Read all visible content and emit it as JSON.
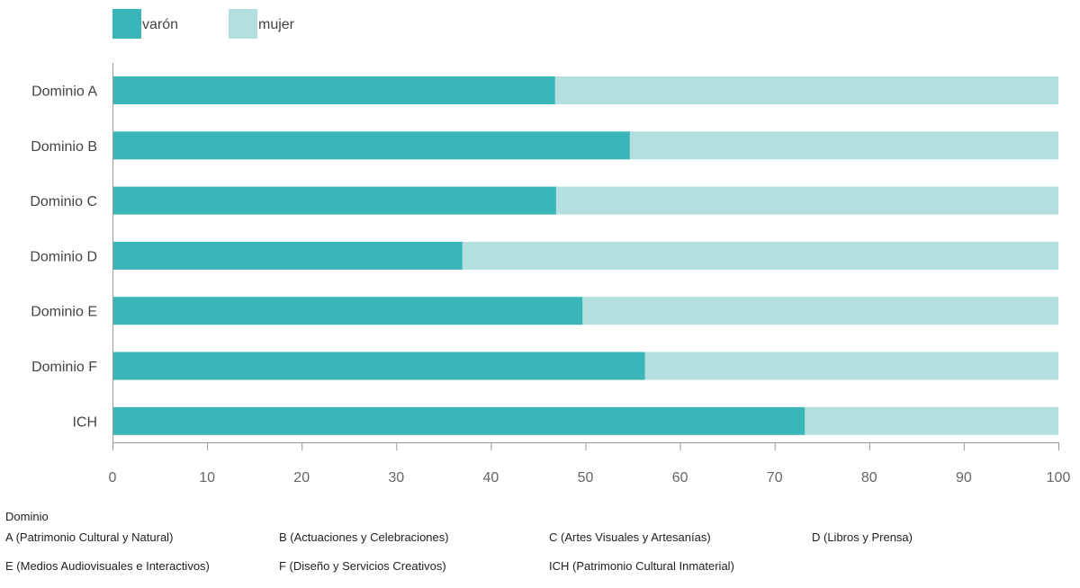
{
  "chart_data": {
    "type": "bar",
    "orientation": "horizontal",
    "stacked": true,
    "categories": [
      "Dominio A",
      "Dominio B",
      "Dominio C",
      "Dominio D",
      "Dominio E",
      "Dominio F",
      "ICH"
    ],
    "series": [
      {
        "name": "varón",
        "color": "#3ab5b8",
        "values": [
          46.8,
          54.7,
          46.9,
          37.0,
          49.7,
          56.3,
          73.2
        ]
      },
      {
        "name": "mujer",
        "color": "#b3dfdf",
        "values": [
          53.2,
          45.3,
          53.1,
          63.0,
          50.3,
          43.7,
          26.8
        ]
      }
    ],
    "xlim": [
      0,
      100
    ],
    "xticks": [
      0,
      10,
      20,
      30,
      40,
      50,
      60,
      70,
      80,
      90,
      100
    ],
    "grid": false,
    "legend_position": "top-left"
  },
  "footnote": {
    "title": "Dominio",
    "items": [
      "A (Patrimonio Cultural y Natural)",
      "B (Actuaciones y Celebraciones)",
      "C (Artes Visuales y Artesanías)",
      "D (Libros y Prensa)",
      "E (Medios Audiovisuales e Interactivos)",
      "F (Diseño y Servicios Creativos)",
      "ICH (Patrimonio Cultural Inmaterial)"
    ]
  }
}
